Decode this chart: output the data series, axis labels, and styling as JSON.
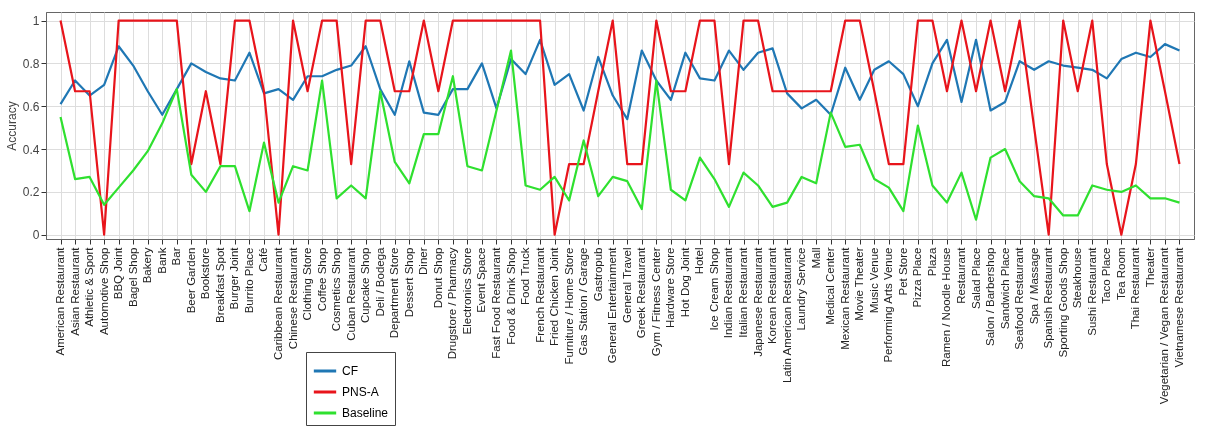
{
  "chart_data": {
    "type": "line",
    "ylabel": "Accuracy",
    "categories": [
      "American Restaurant",
      "Asian Restaurant",
      "Athletic & Sport",
      "Automotive Shop",
      "BBQ Joint",
      "Bagel Shop",
      "Bakery",
      "Bank",
      "Bar",
      "Beer Garden",
      "Bookstore",
      "Breakfast Spot",
      "Burger Joint",
      "Burrito Place",
      "Café",
      "Caribbean Restaurant",
      "Chinese Restaurant",
      "Clothing Store",
      "Coffee Shop",
      "Cosmetics Shop",
      "Cuban Restaurant",
      "Cupcake Shop",
      "Deli / Bodega",
      "Department Store",
      "Dessert Shop",
      "Diner",
      "Donut Shop",
      "Drugstore / Pharmacy",
      "Electronics Store",
      "Event Space",
      "Fast Food Restaurant",
      "Food & Drink Shop",
      "Food Truck",
      "French Restaurant",
      "Fried Chicken Joint",
      "Furniture / Home Store",
      "Gas Station / Garage",
      "Gastropub",
      "General Entertainment",
      "General Travel",
      "Greek Restaurant",
      "Gym / Fitness Center",
      "Hardware Store",
      "Hot Dog Joint",
      "Hotel",
      "Ice Cream Shop",
      "Indian Restaurant",
      "Italian Restaurant",
      "Japanese Restaurant",
      "Korean Restaurant",
      "Latin American Restaurant",
      "Laundry Service",
      "Mall",
      "Medical Center",
      "Mexican Restaurant",
      "Movie Theater",
      "Music Venue",
      "Performing Arts Venue",
      "Pet Store",
      "Pizza Place",
      "Plaza",
      "Ramen /  Noodle House",
      "Restaurant",
      "Salad Place",
      "Salon / Barbershop",
      "Sandwich Place",
      "Seafood Restaurant",
      "Spa / Massage",
      "Spanish Restaurant",
      "Sporting Goods Shop",
      "Steakhouse",
      "Sushi Restaurant",
      "Taco Place",
      "Tea Room",
      "Thai Restaurant",
      "Theater",
      "Vegetarian / Vegan Restaurant",
      "Vietnamese Restaurant"
    ],
    "series": [
      {
        "name": "CF",
        "color": "#1f77b4",
        "values": [
          0.61,
          0.72,
          0.65,
          0.7,
          0.88,
          0.79,
          0.67,
          0.56,
          0.68,
          0.8,
          0.76,
          0.73,
          0.72,
          0.85,
          0.66,
          0.68,
          0.63,
          0.74,
          0.74,
          0.77,
          0.79,
          0.88,
          0.68,
          0.56,
          0.81,
          0.57,
          0.56,
          0.68,
          0.68,
          0.8,
          0.59,
          0.82,
          0.75,
          0.91,
          0.7,
          0.75,
          0.58,
          0.83,
          0.65,
          0.54,
          0.86,
          0.72,
          0.63,
          0.85,
          0.73,
          0.72,
          0.86,
          0.77,
          0.85,
          0.87,
          0.66,
          0.59,
          0.63,
          0.56,
          0.78,
          0.63,
          0.77,
          0.81,
          0.75,
          0.6,
          0.8,
          0.91,
          0.62,
          0.91,
          0.58,
          0.62,
          0.81,
          0.77,
          0.81,
          0.79,
          0.78,
          0.77,
          0.73,
          0.82,
          0.85,
          0.83,
          0.89,
          0.86
        ]
      },
      {
        "name": "PNS-A",
        "color": "#e8141b",
        "values": [
          1,
          0.67,
          0.67,
          0,
          1,
          1,
          1,
          1,
          1,
          0.33,
          0.67,
          0.33,
          1,
          1,
          0.67,
          0,
          1,
          0.67,
          1,
          1,
          0.33,
          1,
          1,
          0.67,
          0.67,
          1,
          0.67,
          1,
          1,
          1,
          1,
          1,
          1,
          1,
          0,
          0.33,
          0.33,
          0.67,
          1,
          0.33,
          0.33,
          1,
          0.67,
          0.67,
          1,
          1,
          0.33,
          1,
          1,
          0.67,
          0.67,
          0.67,
          0.67,
          0.67,
          1,
          1,
          0.67,
          0.33,
          0.33,
          1,
          1,
          0.67,
          1,
          0.67,
          1,
          0.67,
          1,
          0.5,
          0,
          1,
          0.67,
          1,
          0.33,
          0,
          0.33,
          1,
          0.67,
          0.33
        ]
      },
      {
        "name": "Baseline",
        "color": "#2fe02f",
        "values": [
          0.55,
          0.26,
          0.27,
          0.14,
          0.22,
          0.3,
          0.39,
          0.52,
          0.68,
          0.28,
          0.2,
          0.32,
          0.32,
          0.11,
          0.43,
          0.15,
          0.32,
          0.3,
          0.72,
          0.17,
          0.23,
          0.17,
          0.67,
          0.34,
          0.24,
          0.47,
          0.47,
          0.74,
          0.32,
          0.3,
          0.58,
          0.86,
          0.23,
          0.21,
          0.27,
          0.16,
          0.44,
          0.18,
          0.27,
          0.25,
          0.12,
          0.72,
          0.21,
          0.16,
          0.36,
          0.26,
          0.13,
          0.29,
          0.23,
          0.13,
          0.15,
          0.27,
          0.24,
          0.57,
          0.41,
          0.42,
          0.26,
          0.22,
          0.11,
          0.51,
          0.23,
          0.15,
          0.29,
          0.07,
          0.36,
          0.4,
          0.25,
          0.18,
          0.17,
          0.09,
          0.09,
          0.23,
          0.21,
          0.2,
          0.23,
          0.17,
          0.17,
          0.15
        ]
      }
    ],
    "ylim": [
      -0.02,
      1.04
    ],
    "yticks": [
      0,
      0.2,
      0.4,
      0.6,
      0.8,
      1
    ],
    "grid": true,
    "legend": "bottom",
    "marker": "none",
    "line_style": "solid"
  }
}
